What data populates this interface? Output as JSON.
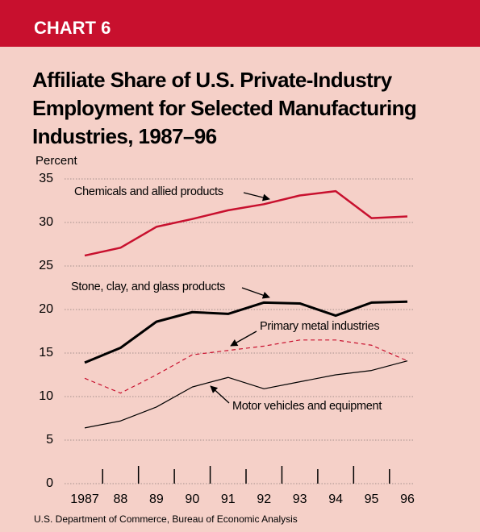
{
  "chart_data": {
    "type": "line",
    "header": "CHART 6",
    "title": "Affiliate Share of U.S. Private-Industry Employment for Selected Manufacturing Industries, 1987–96",
    "y_label": "Percent",
    "source": "U.S. Department of Commerce, Bureau of Economic Analysis",
    "categories": [
      "1987",
      "88",
      "89",
      "90",
      "91",
      "92",
      "93",
      "94",
      "95",
      "96"
    ],
    "series": [
      {
        "name": "Chemicals and allied products",
        "color": "#c8102e",
        "values": [
          26.2,
          27.1,
          29.5,
          30.4,
          31.4,
          32.1,
          33.1,
          33.6,
          30.5,
          30.7
        ]
      },
      {
        "name": "Stone, clay, and glass products",
        "color": "#000000",
        "values": [
          13.9,
          15.6,
          18.6,
          19.7,
          19.5,
          20.8,
          20.7,
          19.3,
          20.8,
          20.9
        ]
      },
      {
        "name": "Primary metal industries",
        "color": "#c8102e",
        "values": [
          12.1,
          10.4,
          12.5,
          14.8,
          15.3,
          15.8,
          16.5,
          16.5,
          15.9,
          14.1
        ]
      },
      {
        "name": "Motor vehicles and equipment",
        "color": "#000000",
        "values": [
          6.4,
          7.2,
          8.8,
          11.1,
          12.2,
          10.9,
          11.7,
          12.5,
          13.0,
          14.1
        ]
      }
    ],
    "ylim": [
      0,
      35
    ],
    "yticks": [
      0,
      5,
      10,
      15,
      20,
      25,
      30,
      35
    ],
    "grid": true
  }
}
